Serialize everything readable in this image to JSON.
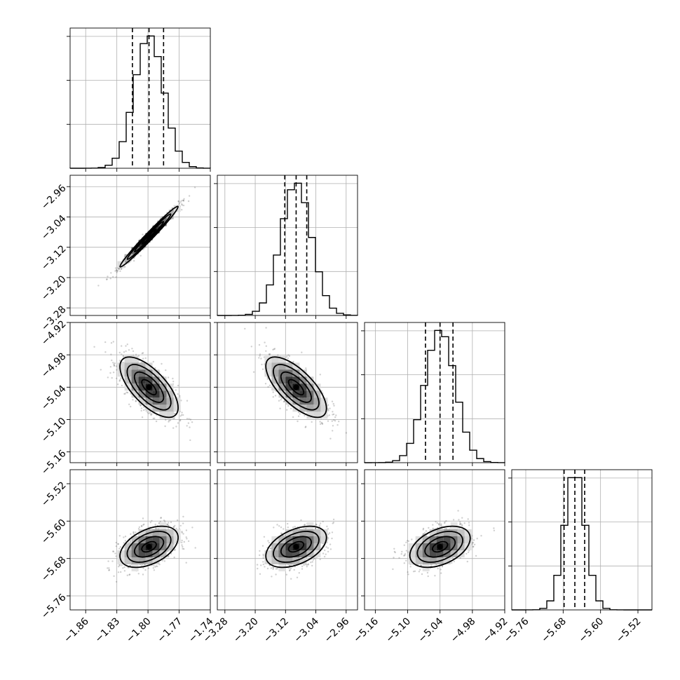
{
  "chart_data": {
    "type": "corner",
    "parameters": [
      {
        "range": [
          -1.875,
          -1.74
        ],
        "ticks": [
          -1.86,
          -1.83,
          -1.8,
          -1.77,
          -1.74
        ],
        "tick_labels": [
          "−1.86",
          "−1.83",
          "−1.80",
          "−1.77",
          "−1.74"
        ],
        "mean": -1.799,
        "sd": 0.014,
        "quantiles": [
          -1.815,
          -1.799,
          -1.785
        ]
      },
      {
        "range": [
          -3.3,
          -2.93
        ],
        "ticks": [
          -3.28,
          -3.2,
          -3.12,
          -3.04,
          -2.96
        ],
        "tick_labels": [
          "−3.28",
          "−3.20",
          "−3.12",
          "−3.04",
          "−2.96"
        ],
        "mean": -3.092,
        "sd": 0.04,
        "quantiles": [
          -3.122,
          -3.092,
          -3.064
        ]
      },
      {
        "range": [
          -5.18,
          -4.92
        ],
        "ticks": [
          -5.16,
          -5.1,
          -5.04,
          -4.98,
          -4.92
        ],
        "tick_labels": [
          "−5.16",
          "−5.10",
          "−5.04",
          "−4.98",
          "−4.92"
        ],
        "mean": -5.04,
        "sd": 0.028,
        "quantiles": [
          -5.067,
          -5.04,
          -5.016
        ]
      },
      {
        "range": [
          -5.79,
          -5.49
        ],
        "ticks": [
          -5.76,
          -5.68,
          -5.6,
          -5.52
        ],
        "tick_labels": [
          "−5.76",
          "−5.68",
          "−5.60",
          "−5.52"
        ],
        "mean": -5.655,
        "sd": 0.022,
        "quantiles": [
          -5.678,
          -5.655,
          -5.634
        ]
      }
    ],
    "correlations": {
      "1-0": 0.985,
      "2-0": -0.68,
      "2-1": -0.7,
      "3-0": 0.45,
      "3-1": 0.45,
      "3-2": 0.42
    },
    "hist_bins": 20,
    "contour_levels": [
      "0.5 sigma",
      "1 sigma",
      "1.5 sigma",
      "2 sigma"
    ],
    "grid": true,
    "xlabel": "",
    "ylabel": ""
  }
}
